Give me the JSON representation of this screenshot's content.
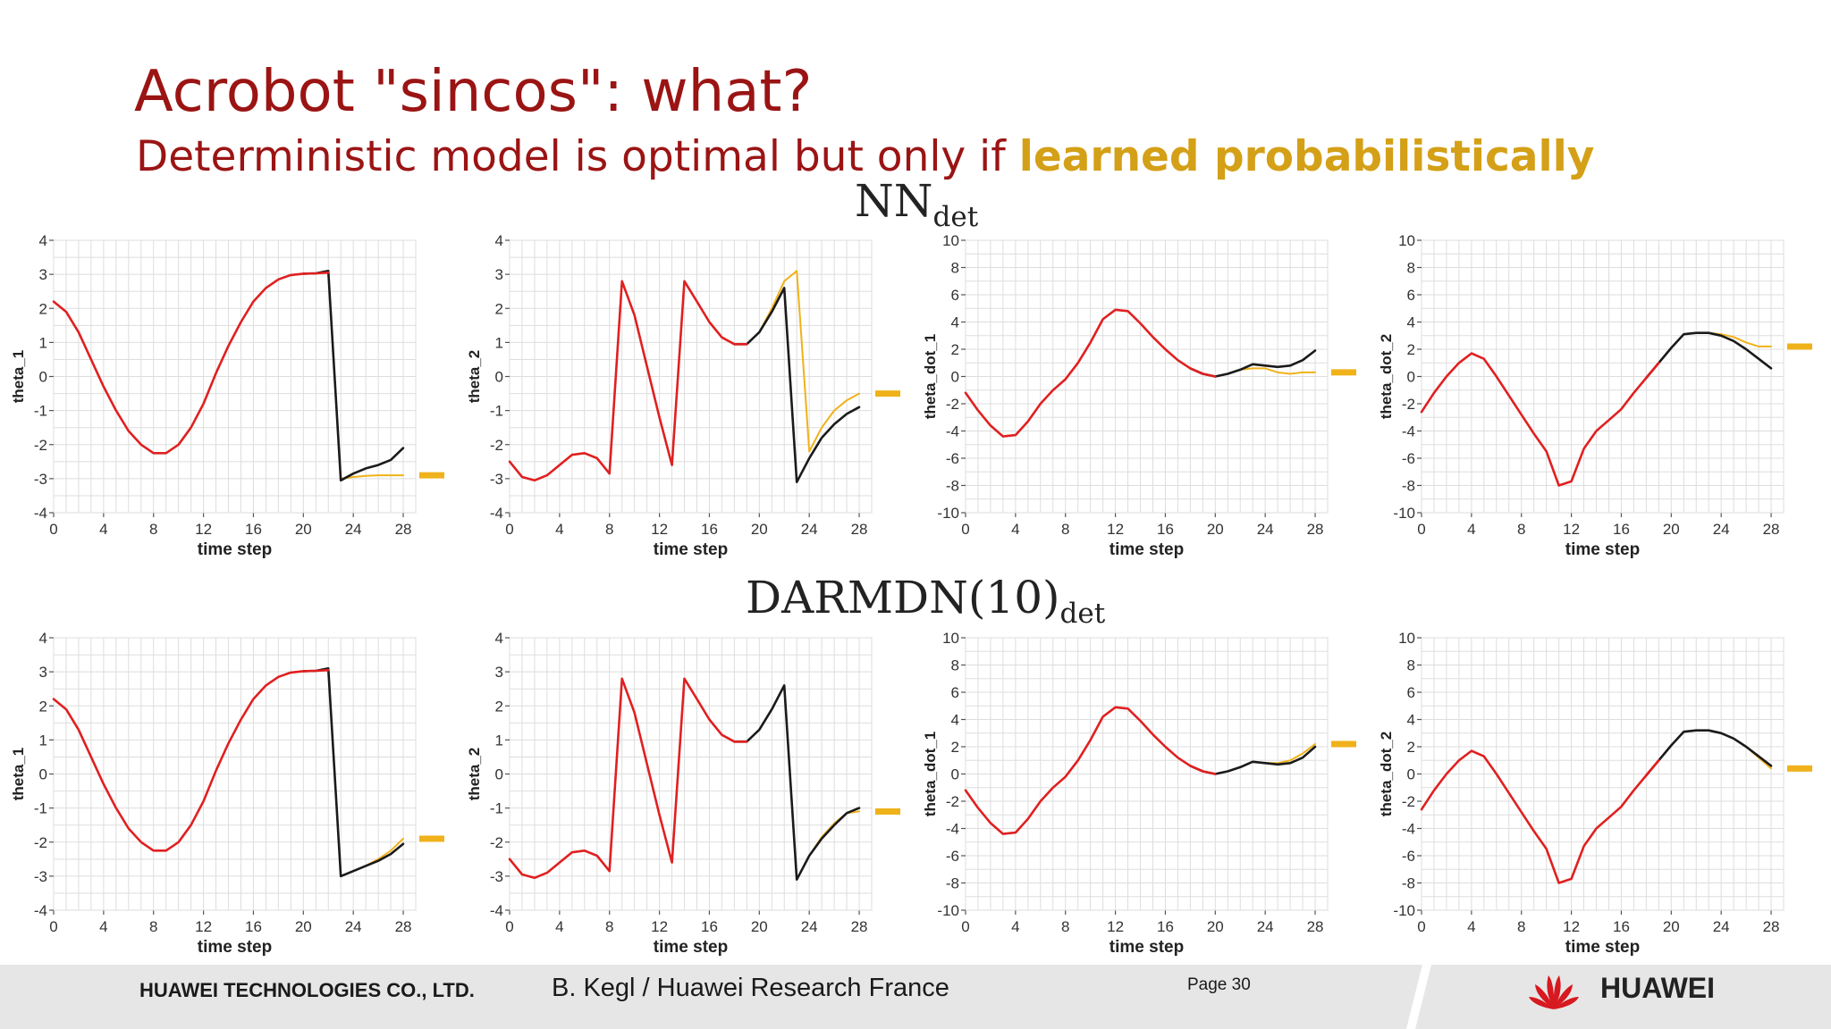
{
  "slide": {
    "title": "Acrobot \"sincos\": what?",
    "subtitle_prefix": "Deterministic model is optimal but only if ",
    "subtitle_highlight": "learned probabilistically",
    "row1_label_main": "NN",
    "row1_label_sub": "det",
    "row2_label_main": "DARMDN(10)",
    "row2_label_sub": "det"
  },
  "footer": {
    "company": "HUAWEI TECHNOLOGIES CO., LTD.",
    "author": "B. Kegl / Huawei Research France",
    "page": "Page 30",
    "brand": "HUAWEI"
  },
  "colors": {
    "title": "#9b1414",
    "highlight": "#d4a017",
    "observed": "#e02020",
    "truth": "#1a1a1a",
    "predicted": "#f0b21a",
    "grid": "#dddddd"
  },
  "chart_data": [
    {
      "type": "line",
      "row": "NN_det",
      "ylabel": "theta_1",
      "xlabel": "time step",
      "xlim": [
        0,
        29
      ],
      "ylim": [
        -4,
        4
      ],
      "yticks": [
        -4,
        -3,
        -2,
        -1,
        0,
        1,
        2,
        3,
        4
      ],
      "xticks": [
        0,
        4,
        8,
        12,
        16,
        20,
        24,
        28
      ],
      "series": [
        {
          "role": "observed",
          "x": [
            0,
            1,
            2,
            3,
            4,
            5,
            6,
            7,
            8,
            9,
            10,
            11,
            12,
            13,
            14,
            15,
            16,
            17,
            18,
            19,
            20,
            21,
            22
          ],
          "y": [
            2.2,
            1.9,
            1.3,
            0.5,
            -0.3,
            -1.0,
            -1.6,
            -2.0,
            -2.25,
            -2.25,
            -2.0,
            -1.5,
            -0.8,
            0.1,
            0.9,
            1.6,
            2.2,
            2.6,
            2.85,
            2.98,
            3.02,
            3.03,
            3.05
          ]
        },
        {
          "role": "truth",
          "x": [
            20,
            21,
            22,
            23,
            24,
            25,
            26,
            27,
            28
          ],
          "y": [
            3.02,
            3.03,
            3.1,
            -3.05,
            -2.85,
            -2.7,
            -2.6,
            -2.45,
            -2.1
          ]
        },
        {
          "role": "predicted",
          "x": [
            22,
            23,
            24,
            25,
            26,
            27,
            28
          ],
          "y": [
            3.05,
            -3.0,
            -2.95,
            -2.92,
            -2.9,
            -2.9,
            -2.9
          ]
        }
      ],
      "prediction_marker_y": -2.9
    },
    {
      "type": "line",
      "row": "NN_det",
      "ylabel": "theta_2",
      "xlabel": "time step",
      "xlim": [
        0,
        29
      ],
      "ylim": [
        -4,
        4
      ],
      "yticks": [
        -4,
        -3,
        -2,
        -1,
        0,
        1,
        2,
        3,
        4
      ],
      "xticks": [
        0,
        4,
        8,
        12,
        16,
        20,
        24,
        28
      ],
      "series": [
        {
          "role": "observed",
          "x": [
            0,
            1,
            2,
            3,
            4,
            5,
            6,
            7,
            8,
            9,
            10,
            11,
            12,
            13,
            14,
            15,
            16,
            17,
            18,
            19
          ],
          "y": [
            -2.5,
            -2.95,
            -3.05,
            -2.9,
            -2.6,
            -2.3,
            -2.25,
            -2.4,
            -2.85,
            2.8,
            1.8,
            0.3,
            -1.2,
            -2.6,
            2.8,
            2.2,
            1.6,
            1.15,
            0.95,
            0.95
          ]
        },
        {
          "role": "truth",
          "x": [
            18,
            19,
            20,
            21,
            22,
            23,
            24,
            25,
            26,
            27,
            28
          ],
          "y": [
            0.95,
            0.95,
            1.3,
            1.9,
            2.6,
            -3.1,
            -2.4,
            -1.8,
            -1.4,
            -1.1,
            -0.9
          ]
        },
        {
          "role": "predicted",
          "x": [
            19,
            20,
            21,
            22,
            23,
            24,
            25,
            26,
            27,
            28
          ],
          "y": [
            0.95,
            1.3,
            2.0,
            2.8,
            3.1,
            -2.2,
            -1.5,
            -1.0,
            -0.7,
            -0.5
          ]
        }
      ],
      "prediction_marker_y": -0.5
    },
    {
      "type": "line",
      "row": "NN_det",
      "ylabel": "theta_dot_1",
      "xlabel": "time step",
      "xlim": [
        0,
        29
      ],
      "ylim": [
        -10,
        10
      ],
      "yticks": [
        -10,
        -8,
        -6,
        -4,
        -2,
        0,
        2,
        4,
        6,
        8,
        10
      ],
      "xticks": [
        0,
        4,
        8,
        12,
        16,
        20,
        24,
        28
      ],
      "series": [
        {
          "role": "observed",
          "x": [
            0,
            1,
            2,
            3,
            4,
            5,
            6,
            7,
            8,
            9,
            10,
            11,
            12,
            13,
            14,
            15,
            16,
            17,
            18,
            19,
            20
          ],
          "y": [
            -1.2,
            -2.5,
            -3.6,
            -4.4,
            -4.3,
            -3.3,
            -2.0,
            -1.0,
            -0.2,
            1.0,
            2.5,
            4.2,
            4.9,
            4.8,
            3.9,
            2.9,
            2.0,
            1.2,
            0.6,
            0.2,
            0.0
          ]
        },
        {
          "role": "truth",
          "x": [
            18,
            19,
            20,
            21,
            22,
            23,
            24,
            25,
            26,
            27,
            28
          ],
          "y": [
            0.6,
            0.2,
            0.0,
            0.2,
            0.5,
            0.9,
            0.8,
            0.7,
            0.8,
            1.2,
            1.9
          ]
        },
        {
          "role": "predicted",
          "x": [
            18,
            19,
            20,
            21,
            22,
            23,
            24,
            25,
            26,
            27,
            28
          ],
          "y": [
            0.6,
            0.2,
            0.0,
            0.2,
            0.5,
            0.6,
            0.6,
            0.3,
            0.2,
            0.3,
            0.3
          ]
        }
      ],
      "prediction_marker_y": 0.3
    },
    {
      "type": "line",
      "row": "NN_det",
      "ylabel": "theta_dot_2",
      "xlabel": "time step",
      "xlim": [
        0,
        29
      ],
      "ylim": [
        -10,
        10
      ],
      "yticks": [
        -10,
        -8,
        -6,
        -4,
        -2,
        0,
        2,
        4,
        6,
        8,
        10
      ],
      "xticks": [
        0,
        4,
        8,
        12,
        16,
        20,
        24,
        28
      ],
      "series": [
        {
          "role": "observed",
          "x": [
            0,
            1,
            2,
            3,
            4,
            5,
            6,
            7,
            8,
            9,
            10,
            11,
            12,
            13,
            14,
            15,
            16,
            17,
            18,
            19
          ],
          "y": [
            -2.6,
            -1.2,
            0.0,
            1.0,
            1.7,
            1.3,
            0.0,
            -1.4,
            -2.8,
            -4.2,
            -5.5,
            -8.0,
            -7.7,
            -5.3,
            -4.0,
            -3.2,
            -2.4,
            -1.2,
            -0.1,
            1.0
          ]
        },
        {
          "role": "truth",
          "x": [
            18,
            19,
            20,
            21,
            22,
            23,
            24,
            25,
            26,
            27,
            28
          ],
          "y": [
            -0.1,
            1.0,
            2.1,
            3.1,
            3.2,
            3.2,
            3.0,
            2.6,
            2.0,
            1.3,
            0.6
          ]
        },
        {
          "role": "predicted",
          "x": [
            19,
            20,
            21,
            22,
            23,
            24,
            25,
            26,
            27,
            28
          ],
          "y": [
            1.0,
            2.1,
            3.1,
            3.2,
            3.2,
            3.1,
            2.9,
            2.5,
            2.2,
            2.2
          ]
        }
      ],
      "prediction_marker_y": 2.2
    },
    {
      "type": "line",
      "row": "DARMDN_det",
      "ylabel": "theta_1",
      "xlabel": "time step",
      "xlim": [
        0,
        29
      ],
      "ylim": [
        -4,
        4
      ],
      "yticks": [
        -4,
        -3,
        -2,
        -1,
        0,
        1,
        2,
        3,
        4
      ],
      "xticks": [
        0,
        4,
        8,
        12,
        16,
        20,
        24,
        28
      ],
      "series": [
        {
          "role": "observed",
          "x": [
            0,
            1,
            2,
            3,
            4,
            5,
            6,
            7,
            8,
            9,
            10,
            11,
            12,
            13,
            14,
            15,
            16,
            17,
            18,
            19,
            20,
            21,
            22
          ],
          "y": [
            2.2,
            1.9,
            1.3,
            0.5,
            -0.3,
            -1.0,
            -1.6,
            -2.0,
            -2.25,
            -2.25,
            -2.0,
            -1.5,
            -0.8,
            0.1,
            0.9,
            1.6,
            2.2,
            2.6,
            2.85,
            2.98,
            3.02,
            3.03,
            3.05
          ]
        },
        {
          "role": "truth",
          "x": [
            20,
            21,
            22,
            23,
            24,
            25,
            26,
            27,
            28
          ],
          "y": [
            3.02,
            3.03,
            3.1,
            -3.0,
            -2.85,
            -2.7,
            -2.55,
            -2.35,
            -2.05
          ]
        },
        {
          "role": "predicted",
          "x": [
            23,
            24,
            25,
            26,
            27,
            28
          ],
          "y": [
            -3.0,
            -2.85,
            -2.7,
            -2.5,
            -2.25,
            -1.9
          ]
        }
      ],
      "prediction_marker_y": -1.9
    },
    {
      "type": "line",
      "row": "DARMDN_det",
      "ylabel": "theta_2",
      "xlabel": "time step",
      "xlim": [
        0,
        29
      ],
      "ylim": [
        -4,
        4
      ],
      "yticks": [
        -4,
        -3,
        -2,
        -1,
        0,
        1,
        2,
        3,
        4
      ],
      "xticks": [
        0,
        4,
        8,
        12,
        16,
        20,
        24,
        28
      ],
      "series": [
        {
          "role": "observed",
          "x": [
            0,
            1,
            2,
            3,
            4,
            5,
            6,
            7,
            8,
            9,
            10,
            11,
            12,
            13,
            14,
            15,
            16,
            17,
            18,
            19
          ],
          "y": [
            -2.5,
            -2.95,
            -3.05,
            -2.9,
            -2.6,
            -2.3,
            -2.25,
            -2.4,
            -2.85,
            2.8,
            1.8,
            0.3,
            -1.2,
            -2.6,
            2.8,
            2.2,
            1.6,
            1.15,
            0.95,
            0.95
          ]
        },
        {
          "role": "truth",
          "x": [
            18,
            19,
            20,
            21,
            22,
            23,
            24,
            25,
            26,
            27,
            28
          ],
          "y": [
            0.95,
            0.95,
            1.3,
            1.9,
            2.6,
            -3.1,
            -2.4,
            -1.9,
            -1.5,
            -1.15,
            -1.0
          ]
        },
        {
          "role": "predicted",
          "x": [
            23,
            24,
            25,
            26,
            27,
            28
          ],
          "y": [
            -3.1,
            -2.4,
            -1.85,
            -1.45,
            -1.15,
            -1.1
          ]
        }
      ],
      "prediction_marker_y": -1.1
    },
    {
      "type": "line",
      "row": "DARMDN_det",
      "ylabel": "theta_dot_1",
      "xlabel": "time step",
      "xlim": [
        0,
        29
      ],
      "ylim": [
        -10,
        10
      ],
      "yticks": [
        -10,
        -8,
        -6,
        -4,
        -2,
        0,
        2,
        4,
        6,
        8,
        10
      ],
      "xticks": [
        0,
        4,
        8,
        12,
        16,
        20,
        24,
        28
      ],
      "series": [
        {
          "role": "observed",
          "x": [
            0,
            1,
            2,
            3,
            4,
            5,
            6,
            7,
            8,
            9,
            10,
            11,
            12,
            13,
            14,
            15,
            16,
            17,
            18,
            19,
            20
          ],
          "y": [
            -1.2,
            -2.5,
            -3.6,
            -4.4,
            -4.3,
            -3.3,
            -2.0,
            -1.0,
            -0.2,
            1.0,
            2.5,
            4.2,
            4.9,
            4.8,
            3.9,
            2.9,
            2.0,
            1.2,
            0.6,
            0.2,
            0.0
          ]
        },
        {
          "role": "truth",
          "x": [
            18,
            19,
            20,
            21,
            22,
            23,
            24,
            25,
            26,
            27,
            28
          ],
          "y": [
            0.6,
            0.2,
            0.0,
            0.2,
            0.5,
            0.9,
            0.8,
            0.7,
            0.8,
            1.2,
            2.0
          ]
        },
        {
          "role": "predicted",
          "x": [
            22,
            23,
            24,
            25,
            26,
            27,
            28
          ],
          "y": [
            0.5,
            0.9,
            0.8,
            0.8,
            1.0,
            1.5,
            2.2
          ]
        }
      ],
      "prediction_marker_y": 2.2
    },
    {
      "type": "line",
      "row": "DARMDN_det",
      "ylabel": "theta_dot_2",
      "xlabel": "time step",
      "xlim": [
        0,
        29
      ],
      "ylim": [
        -10,
        10
      ],
      "yticks": [
        -10,
        -8,
        -6,
        -4,
        -2,
        0,
        2,
        4,
        6,
        8,
        10
      ],
      "xticks": [
        0,
        4,
        8,
        12,
        16,
        20,
        24,
        28
      ],
      "series": [
        {
          "role": "observed",
          "x": [
            0,
            1,
            2,
            3,
            4,
            5,
            6,
            7,
            8,
            9,
            10,
            11,
            12,
            13,
            14,
            15,
            16,
            17,
            18,
            19
          ],
          "y": [
            -2.6,
            -1.2,
            0.0,
            1.0,
            1.7,
            1.3,
            0.0,
            -1.4,
            -2.8,
            -4.2,
            -5.5,
            -8.0,
            -7.7,
            -5.3,
            -4.0,
            -3.2,
            -2.4,
            -1.2,
            -0.1,
            1.0
          ]
        },
        {
          "role": "truth",
          "x": [
            18,
            19,
            20,
            21,
            22,
            23,
            24,
            25,
            26,
            27,
            28
          ],
          "y": [
            -0.1,
            1.0,
            2.1,
            3.1,
            3.2,
            3.2,
            3.0,
            2.6,
            2.0,
            1.3,
            0.6
          ]
        },
        {
          "role": "predicted",
          "x": [
            24,
            25,
            26,
            27,
            28
          ],
          "y": [
            3.0,
            2.6,
            2.0,
            1.2,
            0.4
          ]
        }
      ],
      "prediction_marker_y": 0.4
    }
  ]
}
